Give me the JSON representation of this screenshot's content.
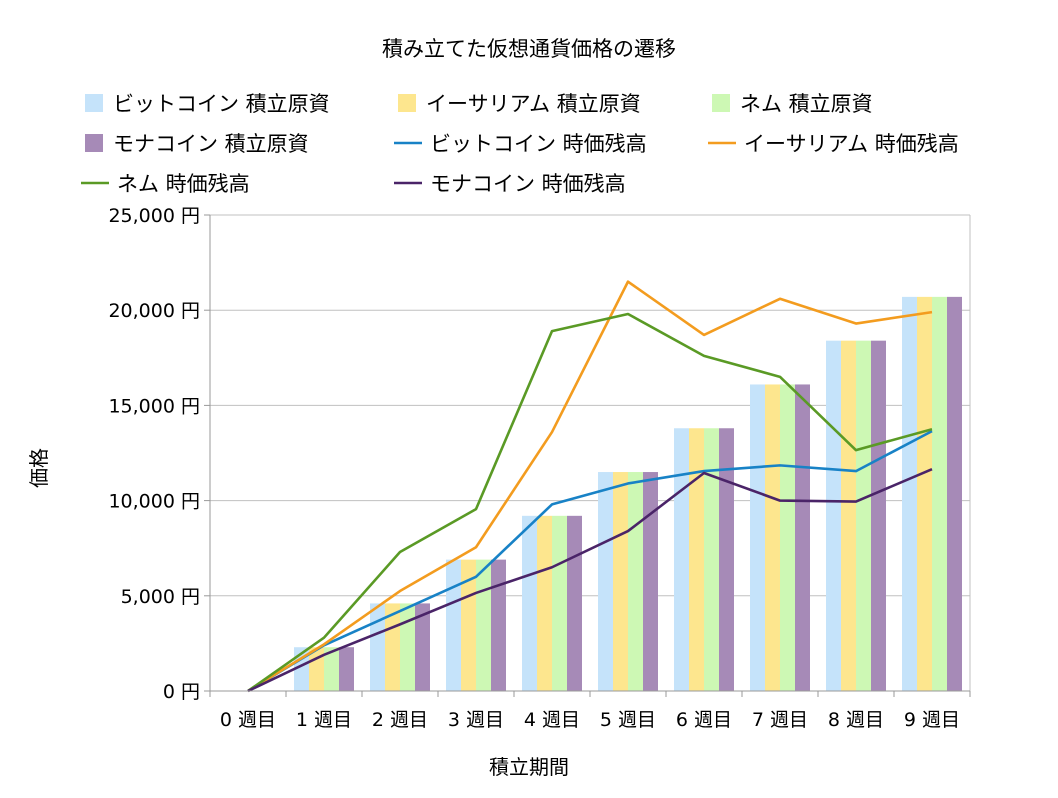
{
  "chart_data": {
    "type": "bar+line",
    "title": "積み立てた仮想通貨価格の遷移",
    "xlabel": "積立期間",
    "ylabel": "価格",
    "ylim": [
      0,
      25000
    ],
    "yticks": [
      0,
      5000,
      10000,
      15000,
      20000,
      25000
    ],
    "ytick_labels": [
      "0 円",
      "5,000 円",
      "10,000 円",
      "15,000 円",
      "20,000 円",
      "25,000 円"
    ],
    "grid": true,
    "legend_placement": "top",
    "categories": [
      "0 週目",
      "1 週目",
      "2 週目",
      "3 週目",
      "4 週目",
      "5 週目",
      "6 週目",
      "7 週目",
      "8 週目",
      "9 週目"
    ],
    "bar_series": [
      {
        "name": "ビットコイン 積立原資",
        "color": "#c5e3fa",
        "values": [
          0,
          2300,
          4600,
          6900,
          9200,
          11500,
          13800,
          16100,
          18400,
          20700
        ]
      },
      {
        "name": "イーサリアム 積立原資",
        "color": "#fde68e",
        "values": [
          0,
          2300,
          4600,
          6900,
          9200,
          11500,
          13800,
          16100,
          18400,
          20700
        ]
      },
      {
        "name": "ネム 積立原資",
        "color": "#cdf8b4",
        "values": [
          0,
          2300,
          4600,
          6900,
          9200,
          11500,
          13800,
          16100,
          18400,
          20700
        ]
      },
      {
        "name": "モナコイン 積立原資",
        "color": "#a68ab7",
        "values": [
          0,
          2300,
          4600,
          6900,
          9200,
          11500,
          13800,
          16100,
          18400,
          20700
        ]
      }
    ],
    "line_series": [
      {
        "name": "ビットコイン 時価残高",
        "color": "#1882c6",
        "values": [
          0,
          2400,
          4200,
          6000,
          9800,
          10900,
          11550,
          11850,
          11550,
          13650
        ]
      },
      {
        "name": "イーサリアム 時価残高",
        "color": "#f39c1f",
        "values": [
          0,
          2450,
          5250,
          7550,
          13600,
          21500,
          18700,
          20600,
          19300,
          19900
        ]
      },
      {
        "name": "ネム 時価残高",
        "color": "#5a9a25",
        "values": [
          0,
          2800,
          7300,
          9550,
          18900,
          19800,
          17600,
          16500,
          12650,
          13750
        ]
      },
      {
        "name": "モナコイン 時価残高",
        "color": "#4a2468",
        "values": [
          0,
          1900,
          3500,
          5150,
          6500,
          8400,
          11450,
          10000,
          9950,
          11650
        ]
      }
    ]
  }
}
